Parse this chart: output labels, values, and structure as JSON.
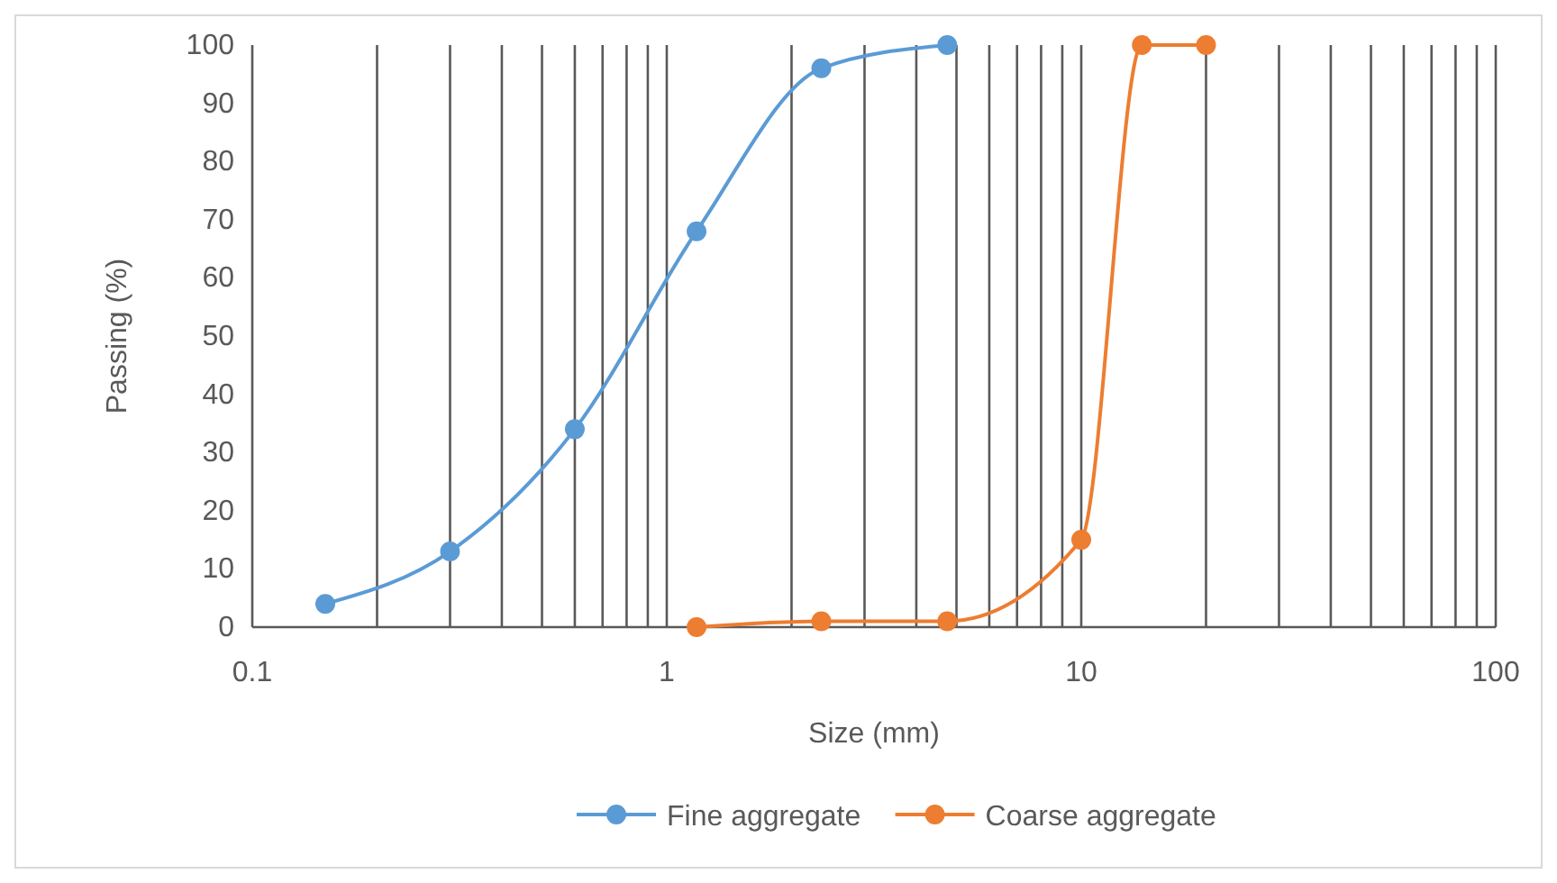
{
  "chart_data": {
    "type": "line",
    "xlabel": "Size (mm)",
    "ylabel": "Passing (%)",
    "log": "x",
    "xlim": [
      0.1,
      100
    ],
    "ylim": [
      0,
      100
    ],
    "xticks": [
      0.1,
      {
        "value": 0.2,
        "label": null
      },
      {
        "value": 0.3,
        "label": null
      },
      {
        "value": 0.4,
        "label": null
      },
      {
        "value": 0.5,
        "label": null
      },
      {
        "value": 0.6,
        "label": null
      },
      {
        "value": 0.7,
        "label": null
      },
      {
        "value": 0.8,
        "label": null
      },
      {
        "value": 0.9,
        "label": null
      },
      1,
      {
        "value": 2,
        "label": null
      },
      {
        "value": 3,
        "label": null
      },
      {
        "value": 4,
        "label": null
      },
      {
        "value": 5,
        "label": null
      },
      {
        "value": 6,
        "label": null
      },
      {
        "value": 7,
        "label": null
      },
      {
        "value": 8,
        "label": null
      },
      {
        "value": 9,
        "label": null
      },
      10,
      {
        "value": 20,
        "label": null
      },
      {
        "value": 30,
        "label": null
      },
      {
        "value": 40,
        "label": null
      },
      {
        "value": 50,
        "label": null
      },
      {
        "value": 60,
        "label": null
      },
      {
        "value": 70,
        "label": null
      },
      {
        "value": 80,
        "label": null
      },
      {
        "value": 90,
        "label": null
      },
      100
    ],
    "yticks": [
      0,
      10,
      20,
      30,
      40,
      50,
      60,
      70,
      80,
      90,
      100
    ],
    "grid": "x",
    "legend": "bottom",
    "marker": "circle",
    "line_style": "solid",
    "series": [
      {
        "name": "Fine aggregate",
        "color": "#5b9bd5",
        "x": [
          0.15,
          0.3,
          0.6,
          1.18,
          2.36,
          4.75
        ],
        "values": [
          4,
          13,
          34,
          68,
          96,
          100
        ]
      },
      {
        "name": "Coarse aggregate",
        "color": "#ed7d31",
        "x": [
          1.18,
          2.36,
          4.75,
          10,
          14,
          20
        ],
        "values": [
          0,
          1,
          1,
          15,
          100,
          100
        ]
      }
    ]
  }
}
